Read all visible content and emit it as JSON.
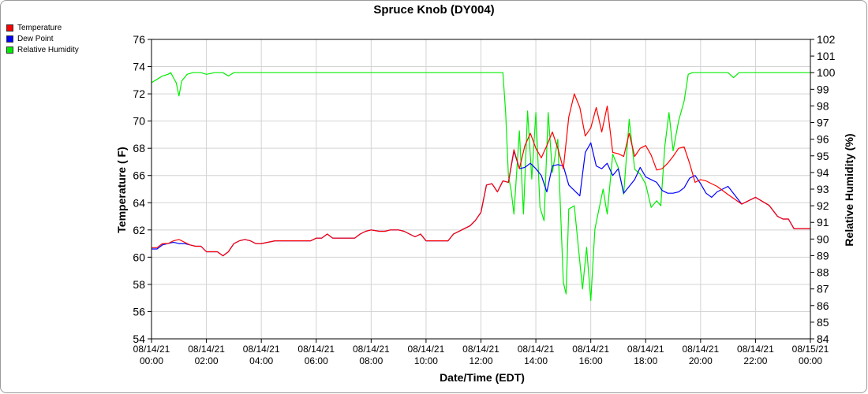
{
  "chart_data": {
    "type": "line",
    "title": "Spruce Knob (DY004)",
    "xlabel": "Date/Time (EDT)",
    "ylabel": "Temperature ( F)",
    "y2label": "Relative Humidity (%)",
    "xlim": [
      0,
      24
    ],
    "ylim": [
      54,
      76
    ],
    "y2lim": [
      84,
      102
    ],
    "grid": true,
    "legend_position": "top-left",
    "x_ticks": [
      {
        "x": 0,
        "date": "08/14/21",
        "time": "00:00"
      },
      {
        "x": 2,
        "date": "08/14/21",
        "time": "02:00"
      },
      {
        "x": 4,
        "date": "08/14/21",
        "time": "04:00"
      },
      {
        "x": 6,
        "date": "08/14/21",
        "time": "06:00"
      },
      {
        "x": 8,
        "date": "08/14/21",
        "time": "08:00"
      },
      {
        "x": 10,
        "date": "08/14/21",
        "time": "10:00"
      },
      {
        "x": 12,
        "date": "08/14/21",
        "time": "12:00"
      },
      {
        "x": 14,
        "date": "08/14/21",
        "time": "14:00"
      },
      {
        "x": 16,
        "date": "08/14/21",
        "time": "16:00"
      },
      {
        "x": 18,
        "date": "08/14/21",
        "time": "18:00"
      },
      {
        "x": 20,
        "date": "08/14/21",
        "time": "20:00"
      },
      {
        "x": 22,
        "date": "08/14/21",
        "time": "22:00"
      },
      {
        "x": 24,
        "date": "08/15/21",
        "time": "00:00"
      }
    ],
    "y_ticks": [
      54,
      56,
      58,
      60,
      62,
      64,
      66,
      68,
      70,
      72,
      74,
      76
    ],
    "y2_ticks": [
      84,
      85,
      86,
      87,
      88,
      89,
      90,
      91,
      92,
      93,
      94,
      95,
      96,
      97,
      98,
      99,
      100,
      101,
      102
    ],
    "series": [
      {
        "name": "Temperature",
        "axis": "left",
        "color": "#ff0000",
        "x": [
          0,
          0.2,
          0.4,
          0.6,
          0.8,
          1.0,
          1.2,
          1.4,
          1.6,
          1.8,
          2.0,
          2.2,
          2.4,
          2.6,
          2.8,
          3.0,
          3.2,
          3.4,
          3.6,
          3.8,
          4.0,
          4.5,
          5.0,
          5.5,
          5.8,
          6.0,
          6.2,
          6.4,
          6.6,
          7.0,
          7.4,
          7.6,
          7.8,
          8.0,
          8.3,
          8.5,
          8.7,
          9.0,
          9.2,
          9.4,
          9.6,
          9.8,
          10.0,
          10.3,
          10.6,
          10.8,
          11.0,
          11.3,
          11.6,
          11.8,
          12.0,
          12.2,
          12.4,
          12.6,
          12.8,
          13.0,
          13.2,
          13.4,
          13.6,
          13.8,
          14.0,
          14.2,
          14.4,
          14.6,
          14.8,
          15.0,
          15.2,
          15.4,
          15.6,
          15.8,
          16.0,
          16.2,
          16.4,
          16.6,
          16.8,
          17.0,
          17.2,
          17.4,
          17.6,
          17.8,
          18.0,
          18.2,
          18.4,
          18.6,
          18.8,
          19.0,
          19.2,
          19.4,
          19.6,
          19.8,
          20.0,
          20.2,
          20.4,
          20.6,
          21.0,
          21.5,
          22.0,
          22.5,
          22.8,
          23.0,
          23.2,
          23.4,
          23.6,
          23.8,
          24.0
        ],
        "values": [
          60.7,
          60.7,
          61.0,
          61.0,
          61.2,
          61.3,
          61.1,
          60.9,
          60.8,
          60.8,
          60.4,
          60.4,
          60.4,
          60.1,
          60.4,
          61.0,
          61.2,
          61.3,
          61.2,
          61.0,
          61.0,
          61.2,
          61.2,
          61.2,
          61.2,
          61.4,
          61.4,
          61.7,
          61.4,
          61.4,
          61.4,
          61.7,
          61.9,
          62.0,
          61.9,
          61.9,
          62.0,
          62.0,
          61.9,
          61.7,
          61.5,
          61.7,
          61.2,
          61.2,
          61.2,
          61.2,
          61.7,
          62.0,
          62.3,
          62.7,
          63.3,
          65.3,
          65.4,
          64.8,
          65.6,
          65.5,
          67.9,
          66.5,
          68.2,
          69.1,
          68.0,
          67.3,
          68.2,
          69.2,
          68.0,
          66.5,
          70.3,
          72.0,
          71.0,
          68.9,
          69.5,
          71.0,
          69.2,
          71.1,
          67.7,
          67.6,
          67.4,
          69.1,
          67.4,
          68.0,
          68.2,
          67.5,
          66.4,
          66.5,
          66.9,
          67.4,
          68.0,
          68.1,
          66.9,
          65.5,
          65.7,
          65.6,
          65.4,
          65.2,
          64.6,
          63.9,
          64.4,
          63.8,
          63.0,
          62.8,
          62.8,
          62.1,
          62.1,
          62.1,
          62.1
        ]
      },
      {
        "name": "Dew Point",
        "axis": "left",
        "color": "#0000ff",
        "x": [
          0,
          0.2,
          0.4,
          0.6,
          0.8,
          1.0,
          1.2,
          1.4,
          1.6,
          1.8,
          2.0,
          2.2,
          2.4,
          2.6,
          2.8,
          3.0,
          3.2,
          3.4,
          3.6,
          3.8,
          4.0,
          4.5,
          5.0,
          5.5,
          5.8,
          6.0,
          6.2,
          6.4,
          6.6,
          7.0,
          7.4,
          7.6,
          7.8,
          8.0,
          8.3,
          8.5,
          8.7,
          9.0,
          9.2,
          9.4,
          9.6,
          9.8,
          10.0,
          10.3,
          10.6,
          10.8,
          11.0,
          11.3,
          11.6,
          11.8,
          12.0,
          12.2,
          12.4,
          12.6,
          12.8,
          13.0,
          13.2,
          13.4,
          13.6,
          13.8,
          14.0,
          14.2,
          14.4,
          14.6,
          14.8,
          15.0,
          15.2,
          15.4,
          15.6,
          15.8,
          16.0,
          16.2,
          16.4,
          16.6,
          16.8,
          17.0,
          17.2,
          17.4,
          17.6,
          17.8,
          18.0,
          18.2,
          18.4,
          18.6,
          18.8,
          19.0,
          19.2,
          19.4,
          19.6,
          19.8,
          20.0,
          20.2,
          20.4,
          20.6,
          21.0,
          21.5,
          22.0,
          22.5,
          22.8,
          23.0,
          23.2,
          23.4,
          23.6,
          23.8,
          24.0
        ],
        "values": [
          60.6,
          60.6,
          60.9,
          61.0,
          61.1,
          61.0,
          61.0,
          60.9,
          60.8,
          60.8,
          60.4,
          60.4,
          60.4,
          60.1,
          60.4,
          61.0,
          61.2,
          61.3,
          61.2,
          61.0,
          61.0,
          61.2,
          61.2,
          61.2,
          61.2,
          61.4,
          61.4,
          61.7,
          61.4,
          61.4,
          61.4,
          61.7,
          61.9,
          62.0,
          61.9,
          61.9,
          62.0,
          62.0,
          61.9,
          61.7,
          61.5,
          61.7,
          61.2,
          61.2,
          61.2,
          61.2,
          61.7,
          62.0,
          62.3,
          62.7,
          63.3,
          65.3,
          65.4,
          64.8,
          65.6,
          65.5,
          67.8,
          66.5,
          66.6,
          66.9,
          66.5,
          66.0,
          64.8,
          66.7,
          66.8,
          66.7,
          65.3,
          64.9,
          64.5,
          67.7,
          68.4,
          66.7,
          66.5,
          66.9,
          66.0,
          66.5,
          64.7,
          65.2,
          65.7,
          66.6,
          65.9,
          65.7,
          65.5,
          64.9,
          64.7,
          64.7,
          64.8,
          65.1,
          65.8,
          66.0,
          65.4,
          64.7,
          64.4,
          64.8,
          65.2,
          63.9,
          64.4,
          63.8,
          63.0,
          62.8,
          62.8,
          62.1,
          62.1,
          62.1,
          62.1
        ]
      },
      {
        "name": "Relative Humidity",
        "axis": "right",
        "color": "#00ee00",
        "x": [
          0,
          0.2,
          0.4,
          0.6,
          0.7,
          0.8,
          0.9,
          1.0,
          1.1,
          1.3,
          1.5,
          1.8,
          2.0,
          2.3,
          2.6,
          2.8,
          3.0,
          4.0,
          6.0,
          8.0,
          10.0,
          12.0,
          12.8,
          12.9,
          13.0,
          13.1,
          13.2,
          13.4,
          13.55,
          13.7,
          13.85,
          14.0,
          14.15,
          14.3,
          14.45,
          14.6,
          14.8,
          15.0,
          15.1,
          15.2,
          15.4,
          15.55,
          15.7,
          15.85,
          16.0,
          16.15,
          16.3,
          16.45,
          16.6,
          16.8,
          17.0,
          17.2,
          17.4,
          17.6,
          17.8,
          18.0,
          18.2,
          18.4,
          18.55,
          18.7,
          18.85,
          19.0,
          19.2,
          19.4,
          19.55,
          19.7,
          19.85,
          20.0,
          20.5,
          21.0,
          21.2,
          21.4,
          21.8,
          22.5,
          23.0,
          23.5,
          24.0
        ],
        "values": [
          99.4,
          99.6,
          99.8,
          99.9,
          100.0,
          99.7,
          99.4,
          98.6,
          99.5,
          99.9,
          100.0,
          100.0,
          99.9,
          100.0,
          100.0,
          99.8,
          100.0,
          100.0,
          100.0,
          100.0,
          100.0,
          100.0,
          100.0,
          97.6,
          93.8,
          92.9,
          91.5,
          96.5,
          91.5,
          97.7,
          93.6,
          97.6,
          91.9,
          91.1,
          97.6,
          94.0,
          96.0,
          87.4,
          86.7,
          91.8,
          92.0,
          89.5,
          87.0,
          89.5,
          86.3,
          90.6,
          91.8,
          93.0,
          91.5,
          95.1,
          94.3,
          92.7,
          97.2,
          94.2,
          93.9,
          93.3,
          91.9,
          92.3,
          92.0,
          95.6,
          97.6,
          95.3,
          97.1,
          98.3,
          99.9,
          100.0,
          100.0,
          100.0,
          100.0,
          100.0,
          99.7,
          100.0,
          100.0,
          100.0,
          100.0,
          100.0,
          100.0
        ]
      }
    ]
  }
}
